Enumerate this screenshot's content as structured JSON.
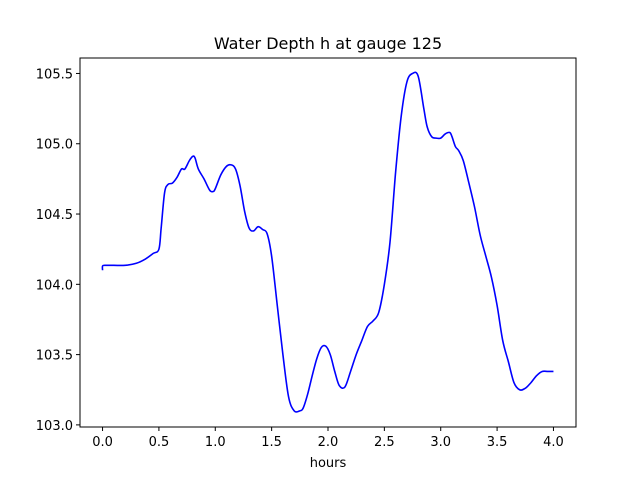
{
  "chart_data": {
    "type": "line",
    "title": "Water Depth h at gauge 125",
    "xlabel": "hours",
    "ylabel": "",
    "xlim": [
      -0.2,
      4.2
    ],
    "ylim": [
      102.985,
      105.61
    ],
    "xticks": [
      0.0,
      0.5,
      1.0,
      1.5,
      2.0,
      2.5,
      3.0,
      3.5,
      4.0
    ],
    "xtick_labels": [
      "0.0",
      "0.5",
      "1.0",
      "1.5",
      "2.0",
      "2.5",
      "3.0",
      "3.5",
      "4.0"
    ],
    "yticks": [
      103.0,
      103.5,
      104.0,
      104.5,
      105.0,
      105.5
    ],
    "ytick_labels": [
      "103.0",
      "103.5",
      "104.0",
      "104.5",
      "105.0",
      "105.5"
    ],
    "grid": false,
    "series": [
      {
        "name": "",
        "color": "#0000ff",
        "x": [
          0.0,
          0.0,
          0.02,
          0.1,
          0.2,
          0.3,
          0.38,
          0.45,
          0.5,
          0.52,
          0.55,
          0.58,
          0.62,
          0.66,
          0.7,
          0.73,
          0.77,
          0.8,
          0.82,
          0.85,
          0.9,
          0.95,
          0.98,
          1.0,
          1.05,
          1.1,
          1.14,
          1.18,
          1.22,
          1.26,
          1.3,
          1.34,
          1.38,
          1.42,
          1.46,
          1.5,
          1.55,
          1.6,
          1.65,
          1.7,
          1.75,
          1.78,
          1.82,
          1.86,
          1.9,
          1.94,
          1.98,
          2.02,
          2.06,
          2.1,
          2.15,
          2.2,
          2.25,
          2.3,
          2.35,
          2.4,
          2.45,
          2.5,
          2.55,
          2.6,
          2.65,
          2.7,
          2.75,
          2.8,
          2.85,
          2.88,
          2.92,
          2.96,
          3.0,
          3.04,
          3.08,
          3.1,
          3.13,
          3.16,
          3.2,
          3.25,
          3.3,
          3.35,
          3.4,
          3.45,
          3.5,
          3.55,
          3.6,
          3.65,
          3.7,
          3.75,
          3.8,
          3.85,
          3.9,
          3.95,
          4.0
        ],
        "y": [
          104.1,
          104.13,
          104.135,
          104.135,
          104.135,
          104.15,
          104.18,
          104.22,
          104.25,
          104.4,
          104.65,
          104.71,
          104.72,
          104.76,
          104.82,
          104.82,
          104.88,
          104.91,
          104.9,
          104.82,
          104.75,
          104.67,
          104.66,
          104.68,
          104.78,
          104.84,
          104.85,
          104.82,
          104.7,
          104.52,
          104.4,
          104.38,
          104.41,
          104.39,
          104.36,
          104.2,
          103.85,
          103.5,
          103.2,
          103.1,
          103.1,
          103.12,
          103.22,
          103.35,
          103.47,
          103.55,
          103.56,
          103.5,
          103.38,
          103.28,
          103.27,
          103.38,
          103.5,
          103.6,
          103.7,
          103.74,
          103.8,
          104.0,
          104.3,
          104.8,
          105.2,
          105.44,
          105.5,
          105.48,
          105.25,
          105.12,
          105.05,
          105.04,
          105.04,
          105.07,
          105.08,
          105.05,
          104.98,
          104.95,
          104.88,
          104.72,
          104.55,
          104.35,
          104.2,
          104.05,
          103.85,
          103.6,
          103.45,
          103.3,
          103.25,
          103.26,
          103.3,
          103.35,
          103.38,
          103.38,
          103.38
        ]
      }
    ]
  }
}
